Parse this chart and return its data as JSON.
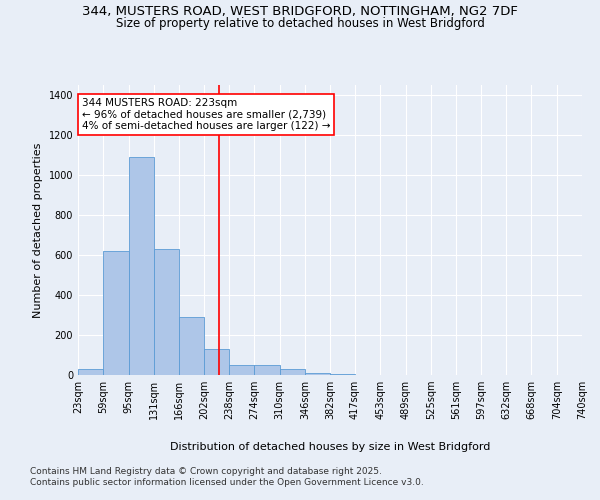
{
  "title_line1": "344, MUSTERS ROAD, WEST BRIDGFORD, NOTTINGHAM, NG2 7DF",
  "title_line2": "Size of property relative to detached houses in West Bridgford",
  "xlabel": "Distribution of detached houses by size in West Bridgford",
  "ylabel": "Number of detached properties",
  "bin_edges": [
    23,
    59,
    95,
    131,
    166,
    202,
    238,
    274,
    310,
    346,
    382,
    417,
    453,
    489,
    525,
    561,
    597,
    632,
    668,
    704,
    740
  ],
  "bar_heights": [
    30,
    620,
    1090,
    630,
    290,
    130,
    50,
    50,
    30,
    10,
    5,
    2,
    1,
    1,
    0,
    0,
    0,
    0,
    0,
    0
  ],
  "bar_color": "#aec6e8",
  "bar_edge_color": "#5b9bd5",
  "property_size": 223,
  "vline_color": "red",
  "annotation_text": "344 MUSTERS ROAD: 223sqm\n← 96% of detached houses are smaller (2,739)\n4% of semi-detached houses are larger (122) →",
  "annotation_box_color": "white",
  "annotation_box_edge_color": "red",
  "ylim": [
    0,
    1450
  ],
  "yticks": [
    0,
    200,
    400,
    600,
    800,
    1000,
    1200,
    1400
  ],
  "background_color": "#e8eef7",
  "footnote": "Contains HM Land Registry data © Crown copyright and database right 2025.\nContains public sector information licensed under the Open Government Licence v3.0.",
  "title_fontsize": 9.5,
  "subtitle_fontsize": 8.5,
  "axis_label_fontsize": 8,
  "tick_fontsize": 7,
  "annotation_fontsize": 7.5,
  "footnote_fontsize": 6.5
}
